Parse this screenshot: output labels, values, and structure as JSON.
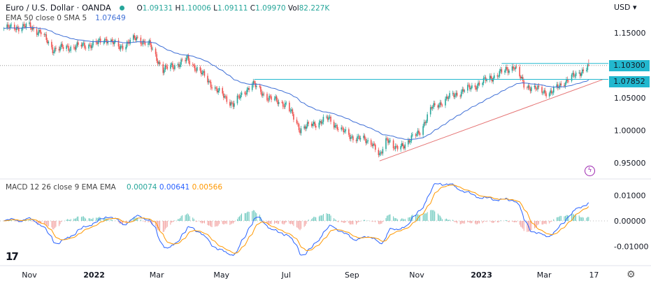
{
  "header": {
    "symbol": "Euro / U.S. Dollar · OANDA",
    "open_label": "O",
    "open": "1.09131",
    "high_label": "H",
    "high": "1.10006",
    "low_label": "L",
    "low": "1.09111",
    "close_label": "C",
    "close": "1.09970",
    "vol_label": "Vol",
    "vol": "82.227K",
    "currency": "USD"
  },
  "indicators": {
    "ema_label": "EMA 50 close 0 SMA 5",
    "ema_value": "1.07649",
    "macd_label": "MACD 12 26 close 9 EMA EMA",
    "macd_hist": "0.00074",
    "macd_line": "0.00641",
    "macd_signal": "0.00566"
  },
  "price_labels": {
    "resistance": "1.10300",
    "support": "1.07852"
  },
  "colors": {
    "up": "#26a69a",
    "down": "#ef5350",
    "ema": "#3f6fd6",
    "macd": "#2962ff",
    "signal": "#ff9800",
    "label_bg": "#22b8cf",
    "trendline": "#e57373"
  },
  "icons": {
    "logo": "tradingview-logo",
    "alert": "lightning-icon",
    "settings": "gear-icon"
  },
  "chart_data": [
    {
      "type": "candlestick",
      "title": "Euro / U.S. Dollar · OANDA",
      "ylabel": "USD",
      "ylim": [
        0.94,
        1.17
      ],
      "yticks": [
        "1.15000",
        "1.05000",
        "1.00000",
        "0.95000"
      ],
      "xticks": [
        "Nov",
        "2022",
        "Mar",
        "May",
        "Jul",
        "Sep",
        "Nov",
        "2023",
        "Mar",
        "17"
      ],
      "close_path": [
        [
          "2021-10-08",
          1.157
        ],
        [
          "2021-11-01",
          1.16
        ],
        [
          "2021-11-12",
          1.15
        ],
        [
          "2021-11-23",
          1.125
        ],
        [
          "2021-12-10",
          1.128
        ],
        [
          "2022-01-03",
          1.133
        ],
        [
          "2022-01-12",
          1.141
        ],
        [
          "2022-01-25",
          1.128
        ],
        [
          "2022-02-10",
          1.142
        ],
        [
          "2022-02-22",
          1.132
        ],
        [
          "2022-03-07",
          1.093
        ],
        [
          "2022-03-22",
          1.103
        ],
        [
          "2022-03-30",
          1.109
        ],
        [
          "2022-04-12",
          1.088
        ],
        [
          "2022-04-27",
          1.061
        ],
        [
          "2022-05-12",
          1.04
        ],
        [
          "2022-05-30",
          1.072
        ],
        [
          "2022-06-14",
          1.05
        ],
        [
          "2022-07-01",
          1.04
        ],
        [
          "2022-07-14",
          1.002
        ],
        [
          "2022-08-10",
          1.018
        ],
        [
          "2022-08-22",
          1.0
        ],
        [
          "2022-09-01",
          0.99
        ],
        [
          "2022-09-20",
          0.982
        ],
        [
          "2022-09-27",
          0.958
        ],
        [
          "2022-10-04",
          0.99
        ],
        [
          "2022-10-12",
          0.97
        ],
        [
          "2022-10-21",
          0.98
        ],
        [
          "2022-11-03",
          0.996
        ],
        [
          "2022-11-15",
          1.034
        ],
        [
          "2022-12-05",
          1.054
        ],
        [
          "2022-12-25",
          1.068
        ],
        [
          "2023-01-15",
          1.085
        ],
        [
          "2023-02-01",
          1.099
        ],
        [
          "2023-02-10",
          1.07
        ],
        [
          "2023-02-28",
          1.06
        ],
        [
          "2023-03-08",
          1.058
        ],
        [
          "2023-03-20",
          1.075
        ],
        [
          "2023-03-31",
          1.085
        ],
        [
          "2023-04-12",
          1.0997
        ]
      ],
      "horizontal_lines": [
        {
          "value": 1.103,
          "from": "2023-01-20"
        },
        {
          "value": 1.07852,
          "from": "2022-06-01"
        }
      ],
      "trendline": [
        [
          "2022-09-27",
          0.953
        ],
        [
          "2023-04-25",
          1.078
        ]
      ],
      "series": [
        {
          "name": "EMA 50"
        }
      ]
    },
    {
      "type": "line",
      "title": "MACD 12 26 close 9 EMA EMA",
      "ylim": [
        -0.016,
        0.014
      ],
      "yticks": [
        "0.01000",
        "0.00000",
        "-0.01000"
      ],
      "series": [
        {
          "name": "MACD"
        },
        {
          "name": "Signal"
        },
        {
          "name": "Histogram"
        }
      ]
    }
  ]
}
